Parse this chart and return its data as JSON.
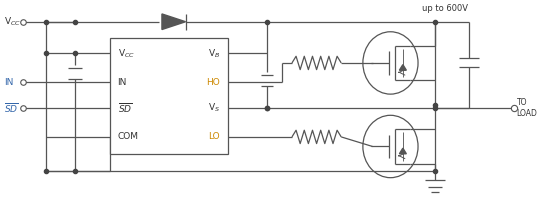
{
  "fig_width": 5.43,
  "fig_height": 1.98,
  "dpi": 100,
  "bg_color": "#ffffff",
  "colors": {
    "ho_text": "#cc8800",
    "lo_text": "#cc8800",
    "node_dot": "#444444",
    "line": "#555555",
    "text": "#333333"
  },
  "labels": {
    "vcc_node": "V$_{CC}$",
    "in_node": "IN",
    "sd_node": "$\\overline{SD}$",
    "upto600": "up to 600V",
    "toload": "TO\nLOAD",
    "vcc_pin": "V$_{CC}$",
    "in_pin": "IN",
    "sd_pin": "$\\overline{SD}$",
    "com_pin": "COM",
    "vb_pin": "V$_B$",
    "ho_pin": "HO",
    "vs_pin": "V$_S$",
    "lo_pin": "LO"
  }
}
